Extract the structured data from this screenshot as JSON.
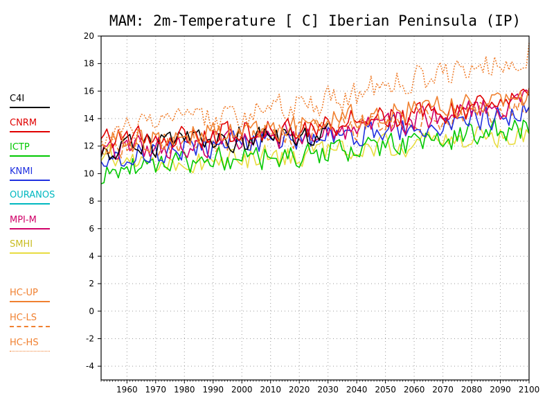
{
  "colors": {
    "C4I": "#000000",
    "CNRM": "#e00000",
    "ICTP": "#00c800",
    "KNMI": "#2030e0",
    "OURANOS": "#00b8c0",
    "MPI-M": "#d00068",
    "SMHI": "#e8dc40",
    "HC": "#f08030",
    "grid": "#999999"
  },
  "chart_data": {
    "type": "line",
    "title": "MAM: 2m-Temperature [   C] Iberian Peninsula (IP)",
    "xlabel": "",
    "ylabel": "",
    "xlim": [
      1951,
      2100
    ],
    "ylim": [
      -5,
      20
    ],
    "xticks": [
      "1960",
      "1970",
      "1980",
      "1990",
      "2000",
      "2010",
      "2020",
      "2030",
      "2040",
      "2050",
      "2060",
      "2070",
      "2080",
      "2090",
      "2100"
    ],
    "yticks": [
      "-4",
      "-2",
      "0",
      "2",
      "4",
      "6",
      "8",
      "10",
      "12",
      "14",
      "16",
      "18",
      "20"
    ],
    "grid": true,
    "legend_position": "left",
    "series": [
      {
        "name": "C4I",
        "color": "#000000",
        "dash": "solid",
        "x": [
          1951,
          1960,
          1970,
          1980,
          1990,
          2000,
          2010,
          2020,
          2030
        ],
        "y": [
          11.6,
          11.8,
          12.0,
          12.2,
          12.4,
          12.6,
          12.7,
          12.8,
          12.9
        ]
      },
      {
        "name": "CNRM",
        "color": "#e00000",
        "dash": "solid",
        "x": [
          1951,
          1960,
          1970,
          1980,
          1990,
          2000,
          2010,
          2020,
          2030,
          2040,
          2050,
          2060,
          2070,
          2080,
          2090,
          2100
        ],
        "y": [
          12.9,
          12.7,
          12.6,
          12.7,
          12.8,
          12.9,
          13.1,
          13.3,
          13.6,
          13.9,
          14.1,
          14.3,
          14.5,
          14.7,
          15.0,
          15.4
        ]
      },
      {
        "name": "ICTP",
        "color": "#00c800",
        "dash": "solid",
        "x": [
          1951,
          1960,
          1970,
          1980,
          1990,
          2000,
          2010,
          2020,
          2030,
          2040,
          2050,
          2060,
          2070,
          2080,
          2090,
          2100
        ],
        "y": [
          9.6,
          10.6,
          10.7,
          10.8,
          11.0,
          11.1,
          11.2,
          11.3,
          11.5,
          11.7,
          12.0,
          12.2,
          12.5,
          12.8,
          13.1,
          13.5
        ]
      },
      {
        "name": "KNMI",
        "color": "#2030e0",
        "dash": "solid",
        "x": [
          1951,
          1960,
          1970,
          1980,
          1990,
          2000,
          2010,
          2020,
          2030,
          2040,
          2050,
          2060,
          2070,
          2080,
          2090,
          2100
        ],
        "y": [
          11.2,
          11.4,
          11.6,
          11.8,
          12.0,
          12.2,
          12.4,
          12.5,
          12.7,
          12.9,
          13.2,
          13.4,
          13.7,
          13.9,
          14.2,
          14.6
        ]
      },
      {
        "name": "OURANOS",
        "color": "#00b8c0",
        "dash": "solid",
        "x": [],
        "y": []
      },
      {
        "name": "MPI-M",
        "color": "#d00068",
        "dash": "solid",
        "x": [
          1951,
          1960,
          1970,
          1980,
          1990,
          2000,
          2010,
          2020,
          2030,
          2040,
          2050,
          2060,
          2070,
          2080,
          2090,
          2100
        ],
        "y": [
          11.6,
          11.8,
          11.9,
          12.0,
          12.2,
          12.4,
          12.6,
          12.8,
          13.0,
          13.3,
          13.6,
          13.9,
          14.2,
          14.5,
          14.8,
          15.2
        ]
      },
      {
        "name": "SMHI",
        "color": "#e8dc40",
        "dash": "solid",
        "x": [
          1951,
          1960,
          1970,
          1980,
          1990,
          2000,
          2010,
          2020,
          2030,
          2040,
          2050,
          2060,
          2070,
          2080,
          2090,
          2100
        ],
        "y": [
          11.2,
          11.0,
          10.8,
          10.7,
          10.9,
          11.0,
          11.2,
          11.4,
          11.6,
          11.8,
          12.0,
          12.2,
          12.4,
          12.6,
          12.8,
          13.1
        ]
      },
      {
        "name": "HC-UP",
        "color": "#f08030",
        "dash": "solid",
        "x": [
          1951,
          1960,
          1970,
          1980,
          1990,
          2000,
          2010,
          2020,
          2030,
          2040,
          2050,
          2060,
          2070,
          2080,
          2090,
          2100
        ],
        "y": [
          12.3,
          12.4,
          12.5,
          12.7,
          12.9,
          13.1,
          13.3,
          13.5,
          13.8,
          14.1,
          14.5,
          14.7,
          14.9,
          15.1,
          15.3,
          15.6
        ]
      },
      {
        "name": "HC-LS",
        "color": "#f08030",
        "dash": "longdash",
        "x": [
          1951,
          1960,
          1970,
          1980,
          1990,
          2000,
          2010,
          2020,
          2030,
          2040,
          2050,
          2060,
          2070,
          2080,
          2090,
          2100
        ],
        "y": [
          11.9,
          12.0,
          12.1,
          12.2,
          12.4,
          12.5,
          12.7,
          12.9,
          13.1,
          13.3,
          13.6,
          13.9,
          14.1,
          14.4,
          14.7,
          15.0
        ]
      },
      {
        "name": "HC-HS",
        "color": "#f08030",
        "dash": "dotted",
        "x": [
          1951,
          1960,
          1970,
          1980,
          1990,
          2000,
          2010,
          2020,
          2030,
          2040,
          2050,
          2060,
          2070,
          2080,
          2090,
          2100
        ],
        "y": [
          12.8,
          13.0,
          13.3,
          13.6,
          13.9,
          14.2,
          14.6,
          14.9,
          15.3,
          15.8,
          16.4,
          16.9,
          17.3,
          17.7,
          18.2,
          18.8
        ]
      }
    ]
  }
}
